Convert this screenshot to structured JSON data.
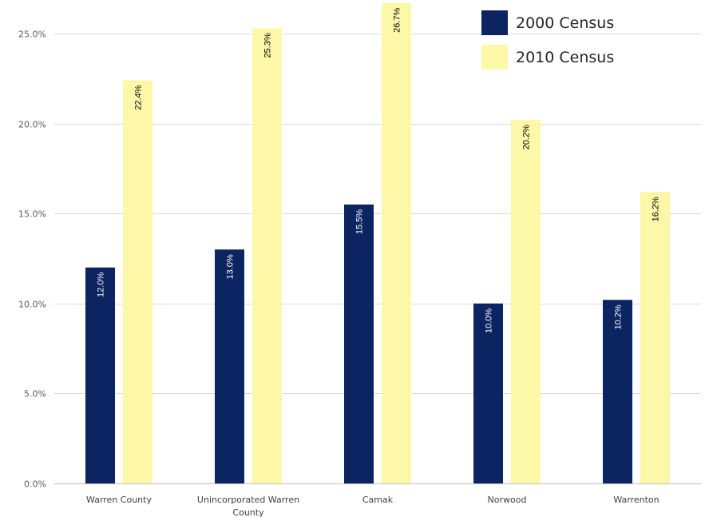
{
  "chart_data": {
    "type": "bar",
    "categories": [
      "Warren County",
      "Unincorporated Warren County",
      "Camak",
      "Norwood",
      "Warrenton"
    ],
    "category_lines": [
      [
        "Warren County"
      ],
      [
        "Unincorporated Warren",
        "County"
      ],
      [
        "Camak"
      ],
      [
        "Norwood"
      ],
      [
        "Warrenton"
      ]
    ],
    "series": [
      {
        "name": "2000 Census",
        "color": "#0c2461",
        "values": [
          12.0,
          13.0,
          15.5,
          10.0,
          10.2
        ],
        "labels": [
          "12.0%",
          "13.0%",
          "15.5%",
          "10.0%",
          "10.2%"
        ]
      },
      {
        "name": "2010 Census",
        "color": "#fdf7a8",
        "values": [
          22.4,
          25.3,
          26.7,
          20.2,
          16.2
        ],
        "labels": [
          "22.4%",
          "25.3%",
          "26.7%",
          "20.2%",
          "16.2%"
        ]
      }
    ],
    "ylim": [
      0,
      25
    ],
    "yticks": [
      0,
      5,
      10,
      15,
      20,
      25
    ],
    "ytick_labels": [
      "0.0%",
      "5.0%",
      "10.0%",
      "15.0%",
      "20.0%",
      "25.0%"
    ],
    "grid": true,
    "legend_position": "top-right"
  }
}
